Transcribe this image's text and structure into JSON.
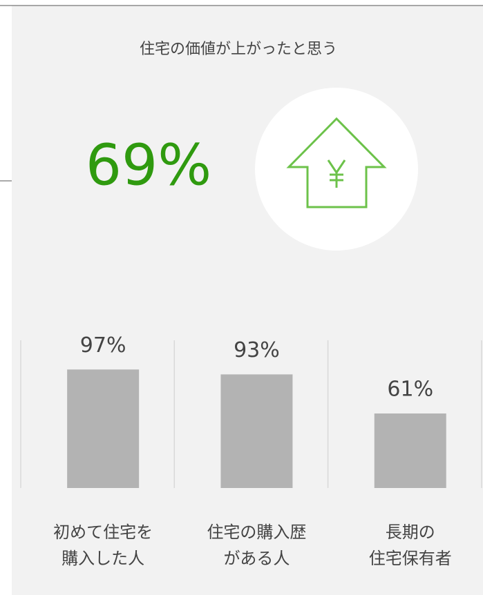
{
  "chart_data": {
    "type": "bar",
    "title": "住宅の価値が上がったと思う",
    "headline": "69%",
    "categories": [
      "初めて住宅を\n購入した人",
      "住宅の購入歴\nがある人",
      "長期の\n住宅保有者"
    ],
    "values": [
      97,
      93,
      61
    ],
    "value_labels": [
      "97%",
      "93%",
      "61%"
    ],
    "color": "#b3b3b3",
    "ylim": [
      0,
      100
    ]
  }
}
